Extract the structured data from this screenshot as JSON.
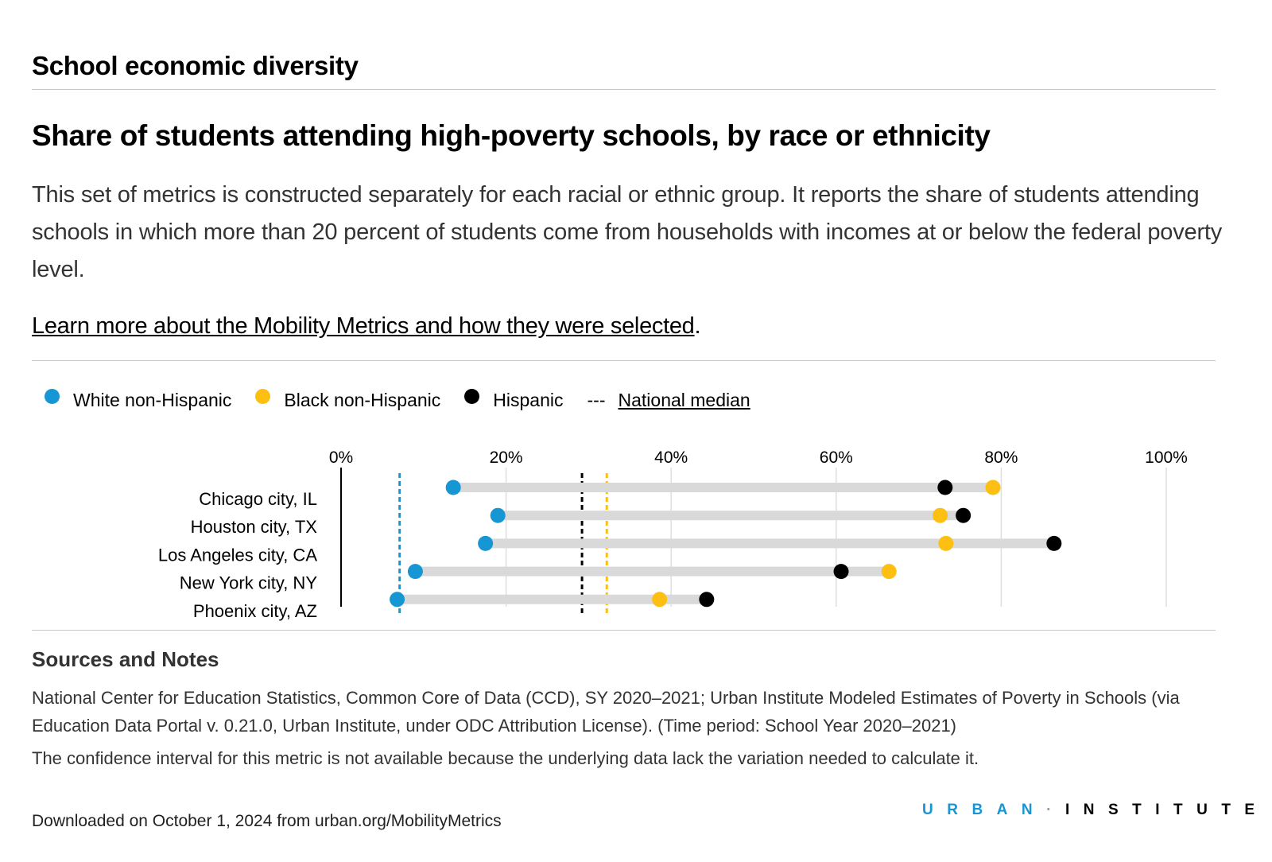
{
  "section_title": "School economic diversity",
  "chart_title": "Share of students attending high-poverty schools, by race or ethnicity",
  "description": "This set of metrics is constructed separately for each racial or ethnic group. It reports the share of students attending schools in which more than 20 percent of students come from households with incomes at or below the federal poverty level.",
  "learn_more": {
    "link": "Learn more about the Mobility Metrics and how they were selected",
    "suffix": "."
  },
  "legend": {
    "white": "White non-Hispanic",
    "black": "Black non-Hispanic",
    "hispanic": "Hispanic",
    "median_symbol": "---",
    "median": "National median"
  },
  "colors": {
    "white": "#1696d2",
    "black": "#fdbf11",
    "hispanic": "#000000",
    "bar": "#d9d9d9",
    "grid": "#dedede"
  },
  "chart_data": {
    "type": "dot-range",
    "orientation": "horizontal",
    "categories": [
      "Chicago city, IL",
      "Houston city, TX",
      "Los Angeles city, CA",
      "New York city, NY",
      "Phoenix city, AZ"
    ],
    "series": [
      {
        "name": "White non-Hispanic",
        "values": [
          13.6,
          19.0,
          17.5,
          9.0,
          6.8
        ]
      },
      {
        "name": "Black non-Hispanic",
        "values": [
          79.0,
          72.6,
          73.3,
          66.4,
          38.6
        ]
      },
      {
        "name": "Hispanic",
        "values": [
          73.2,
          75.4,
          86.4,
          60.6,
          44.3
        ]
      }
    ],
    "national_median": {
      "White non-Hispanic": 7.1,
      "Black non-Hispanic": 32.2,
      "Hispanic": 29.2
    },
    "xlim": [
      0,
      100
    ],
    "xticks": [
      0,
      20,
      40,
      60,
      80,
      100
    ],
    "xtick_labels": [
      "0%",
      "20%",
      "40%",
      "60%",
      "80%",
      "100%"
    ],
    "axis_position": "top",
    "grid": true
  },
  "sources": {
    "title": "Sources and Notes",
    "text": "National Center for Education Statistics, Common Core of Data (CCD), SY 2020–2021; Urban Institute Modeled Estimates of Poverty in Schools (via Education Data Portal v. 0.21.0, Urban Institute, under ODC Attribution License). (Time period: School Year 2020–2021)",
    "note": "The confidence interval for this metric is not available because the underlying data lack the variation needed to calculate it."
  },
  "downloaded": "Downloaded on October 1, 2024 from urban.org/MobilityMetrics",
  "logo": {
    "part1": "URBAN",
    "sep": "·",
    "part2": "INSTITUTE"
  }
}
